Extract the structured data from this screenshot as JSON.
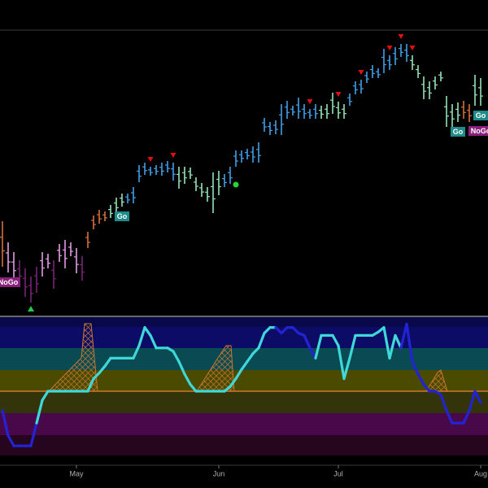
{
  "chart_data": {
    "type": "ohlc",
    "ylim": [
      0,
      351
    ],
    "high": [
      116,
      90,
      78,
      68,
      58,
      48,
      60,
      78,
      76,
      68,
      88,
      93,
      90,
      83,
      73,
      103,
      123,
      130,
      128,
      136,
      145,
      150,
      150,
      158,
      185,
      188,
      183,
      185,
      188,
      190,
      188,
      183,
      183,
      182,
      170,
      163,
      158,
      176,
      178,
      174,
      183,
      203,
      203,
      205,
      208,
      213,
      243,
      238,
      240,
      260,
      264,
      258,
      268,
      260,
      254,
      260,
      258,
      260,
      274,
      263,
      260,
      273,
      288,
      290,
      300,
      308,
      304,
      328,
      320,
      330,
      334,
      334,
      320,
      308,
      294,
      288,
      294,
      300,
      270,
      260,
      262,
      264,
      260,
      296,
      292
    ],
    "low": [
      60,
      53,
      43,
      38,
      23,
      16,
      28,
      48,
      58,
      33,
      66,
      58,
      73,
      52,
      43,
      83,
      106,
      113,
      116,
      120,
      126,
      134,
      138,
      138,
      164,
      173,
      172,
      173,
      172,
      176,
      166,
      156,
      162,
      168,
      153,
      146,
      140,
      126,
      148,
      158,
      162,
      183,
      188,
      192,
      188,
      188,
      226,
      222,
      223,
      222,
      242,
      246,
      242,
      242,
      242,
      242,
      242,
      242,
      248,
      242,
      242,
      258,
      272,
      273,
      286,
      292,
      292,
      298,
      302,
      308,
      318,
      312,
      302,
      292,
      266,
      266,
      278,
      288,
      232,
      232,
      238,
      242,
      238,
      258,
      258
    ],
    "regime": [
      2,
      0,
      0,
      1,
      1,
      1,
      1,
      0,
      0,
      1,
      0,
      0,
      0,
      0,
      1,
      2,
      2,
      2,
      2,
      3,
      3,
      3,
      4,
      4,
      4,
      4,
      4,
      4,
      4,
      4,
      4,
      3,
      3,
      3,
      3,
      3,
      3,
      3,
      3,
      4,
      4,
      4,
      4,
      4,
      4,
      4,
      4,
      4,
      4,
      4,
      4,
      4,
      4,
      4,
      4,
      4,
      3,
      3,
      3,
      3,
      3,
      4,
      4,
      4,
      4,
      4,
      4,
      4,
      4,
      4,
      4,
      4,
      3,
      3,
      3,
      3,
      3,
      3,
      3,
      3,
      3,
      2,
      2,
      3,
      3
    ],
    "palette": [
      "#e39be6",
      "#7a2379",
      "#d6703a",
      "#93e3b6",
      "#3f9fe8"
    ],
    "categories": [
      null,
      null,
      null,
      null,
      null,
      null,
      null,
      null,
      null,
      null,
      null,
      null,
      null,
      "May",
      null,
      null,
      null,
      null,
      null,
      null,
      null,
      null,
      null,
      null,
      null,
      null,
      null,
      null,
      null,
      null,
      null,
      null,
      null,
      null,
      null,
      null,
      null,
      null,
      "Jun",
      null,
      null,
      null,
      null,
      null,
      null,
      null,
      null,
      null,
      null,
      null,
      null,
      null,
      null,
      null,
      null,
      null,
      null,
      null,
      null,
      "Jul",
      null,
      null,
      null,
      null,
      null,
      null,
      null,
      null,
      null,
      null,
      null,
      null,
      null,
      null,
      null,
      null,
      null,
      null,
      null,
      null,
      null,
      null,
      null,
      null,
      "Aug"
    ],
    "sell_signals": [
      26,
      30,
      54,
      59,
      63,
      68,
      70,
      72
    ],
    "buy_signals": [
      5
    ],
    "reentry_signals": [
      41
    ],
    "annotations": [
      {
        "bar": 1,
        "text": "NoGo",
        "color": "#8b1f7d"
      },
      {
        "bar": 21,
        "text": "Go",
        "color": "#1e8a8a"
      },
      {
        "bar": 80,
        "text": "Go",
        "color": "#1e8a8a"
      },
      {
        "bar": 84,
        "text": "Go",
        "color": "#1e8a8a"
      },
      {
        "bar": 84,
        "text": "NoGo",
        "color": "#8b1f7d"
      }
    ],
    "oscillator": {
      "ylim": [
        -6.5,
        6.5
      ],
      "values": [
        -1.7,
        -3.9,
        -4.8,
        -4.8,
        -4.8,
        -4.8,
        -2.8,
        -0.8,
        0,
        0,
        0,
        0,
        0,
        0,
        0,
        0,
        1.1,
        1.6,
        2.2,
        2.9,
        2.9,
        2.9,
        2.9,
        2.9,
        4,
        5.6,
        4.9,
        3.8,
        3.8,
        3.8,
        3.5,
        2.6,
        1.5,
        0.6,
        0,
        0,
        0,
        0,
        0,
        0,
        0.4,
        1.1,
        1.9,
        2.6,
        3.3,
        3.8,
        5.1,
        5.6,
        5.6,
        5.1,
        5.6,
        5.6,
        5.1,
        4.9,
        3.8,
        2.9,
        4.9,
        4.9,
        4.9,
        4,
        1.1,
        2.9,
        4.9,
        4.9,
        4.9,
        4.9,
        5.2,
        5.6,
        2.9,
        4.9,
        3.8,
        5.9,
        2.6,
        1.5,
        0.6,
        0,
        0,
        -0.3,
        -1.7,
        -2.8,
        -2.8,
        -2.8,
        -1.7,
        0,
        -1
      ],
      "regime": [
        0,
        0,
        0,
        0,
        0,
        0,
        0,
        1,
        1,
        1,
        1,
        1,
        1,
        1,
        1,
        1,
        1,
        1,
        1,
        1,
        1,
        1,
        1,
        1,
        1,
        1,
        1,
        1,
        1,
        1,
        1,
        1,
        1,
        1,
        1,
        1,
        1,
        1,
        1,
        1,
        1,
        1,
        1,
        1,
        1,
        1,
        1,
        1,
        1,
        0,
        0,
        0,
        0,
        0,
        0,
        0,
        1,
        1,
        1,
        1,
        1,
        1,
        1,
        1,
        1,
        1,
        1,
        1,
        1,
        1,
        1,
        0,
        0,
        0,
        0,
        0,
        0,
        0,
        0,
        0,
        0,
        0,
        0,
        0,
        0
      ],
      "palette": [
        "#2323d6",
        "#3fd8d8"
      ]
    }
  }
}
